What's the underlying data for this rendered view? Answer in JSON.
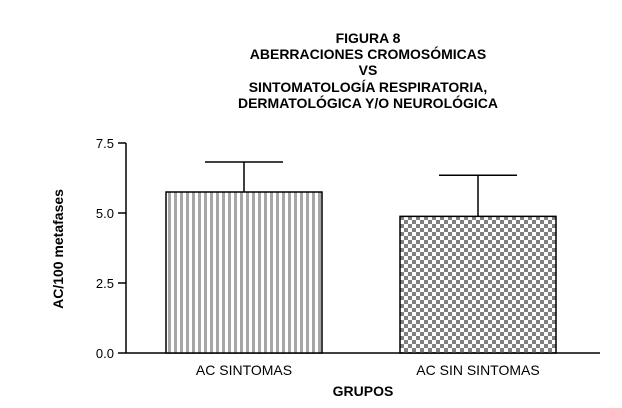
{
  "chart_data": {
    "type": "bar",
    "title_lines": [
      "FIGURA 8",
      "ABERRACIONES CROMOSÓMICAS",
      "VS",
      "SINTOMATOLOGÍA RESPIRATORIA,",
      "DERMATOLÓGICA Y/O NEUROLÓGICA"
    ],
    "xlabel": "GRUPOS",
    "ylabel": "AC/100 metafases",
    "categories": [
      "AC SINTOMAS",
      "AC SIN SINTOMAS"
    ],
    "values": [
      5.75,
      4.88
    ],
    "error_upper": [
      6.82,
      6.35
    ],
    "yticks": [
      0.0,
      2.5,
      5.0,
      7.5
    ],
    "ytick_labels": [
      "0.0",
      "2.5",
      "5.0",
      "7.5"
    ],
    "ylim": [
      0,
      7.5
    ],
    "fills": [
      "vertical-stripes",
      "checkerboard"
    ],
    "grid": false,
    "legend": "none",
    "colors": {
      "bar_stroke": "#000000",
      "stripe": "#a6a6a6",
      "checker": "#808080",
      "background": "#ffffff"
    }
  }
}
